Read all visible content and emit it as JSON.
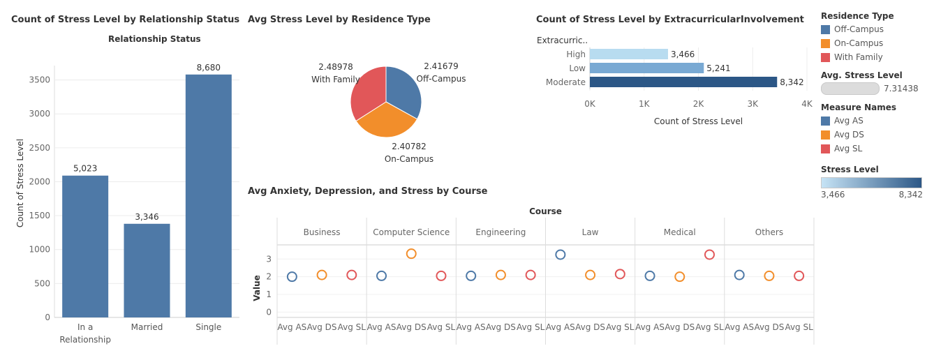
{
  "chart_data": [
    {
      "type": "bar",
      "title": "Count of Stress Level by Relationship Status",
      "header": "Relationship Status",
      "xlabel": "",
      "ylabel": "Count of Stress Level",
      "categories": [
        [
          "In a",
          "Relationship"
        ],
        [
          "Married"
        ],
        [
          "Single"
        ]
      ],
      "values": [
        2090,
        1380,
        3580
      ],
      "data_labels": [
        "5,023",
        "3,346",
        "8,680"
      ],
      "ylim": [
        0,
        3650
      ],
      "yticks": [
        "0",
        "500",
        "1000",
        "1500",
        "2000",
        "2500",
        "3000",
        "3500"
      ],
      "ytick_values": [
        0,
        500,
        1000,
        1500,
        2000,
        2500,
        3000,
        3500
      ],
      "color": "#4e79a7",
      "grid": true
    },
    {
      "type": "pie",
      "title": "Avg Stress Level by Residence Type",
      "slices": [
        {
          "name": "Off-Campus",
          "value": 2.41679,
          "label": "2.41679",
          "color": "#4e79a7"
        },
        {
          "name": "On-Campus",
          "value": 2.40782,
          "label": "2.40782",
          "color": "#f28e2b"
        },
        {
          "name": "With Family",
          "value": 2.48978,
          "label": "2.48978",
          "color": "#e15759"
        }
      ]
    },
    {
      "type": "bar",
      "orientation": "horizontal",
      "title": "Count of Stress Level by ExtracurricularInvolvement",
      "row_header": "Extracurric..",
      "xlabel": "Count of Stress Level",
      "categories": [
        "High",
        "Low",
        "Moderate"
      ],
      "values": [
        1440,
        2100,
        3450
      ],
      "data_labels": [
        "3,466",
        "5,241",
        "8,342"
      ],
      "colors": [
        "#b8dcf0",
        "#79a9d3",
        "#2c5786"
      ],
      "xlim": [
        0,
        4000
      ],
      "xticks": [
        "0K",
        "1K",
        "2K",
        "3K",
        "4K"
      ],
      "xtick_values": [
        0,
        1000,
        2000,
        3000,
        4000
      ],
      "grid": true
    },
    {
      "type": "scatter",
      "title": "Avg Anxiety, Depression, and Stress by Course",
      "header": "Course",
      "ylabel": "Value",
      "ylim": [
        -0.3,
        3.8
      ],
      "yticks": [
        "0",
        "1",
        "2",
        "3"
      ],
      "ytick_values": [
        0,
        1,
        2,
        3
      ],
      "measures": [
        "Avg AS",
        "Avg DS",
        "Avg SL"
      ],
      "measure_colors": [
        "#4e79a7",
        "#f28e2b",
        "#e15759"
      ],
      "courses": [
        {
          "name": "Business",
          "values": [
            2.0,
            2.1,
            2.1
          ]
        },
        {
          "name": "Computer Science",
          "values": [
            2.05,
            3.3,
            2.05
          ]
        },
        {
          "name": "Engineering",
          "values": [
            2.05,
            2.1,
            2.1
          ]
        },
        {
          "name": "Law",
          "values": [
            3.25,
            2.1,
            2.15
          ]
        },
        {
          "name": "Medical",
          "values": [
            2.05,
            2.0,
            3.25
          ]
        },
        {
          "name": "Others",
          "values": [
            2.1,
            2.05,
            2.05
          ]
        }
      ]
    }
  ],
  "legends": {
    "residence": {
      "title": "Residence Type",
      "items": [
        {
          "label": "Off-Campus",
          "color": "#4e79a7"
        },
        {
          "label": "On-Campus",
          "color": "#f28e2b"
        },
        {
          "label": "With Family",
          "color": "#e15759"
        }
      ]
    },
    "avg_stress": {
      "title": "Avg. Stress Level",
      "value": "7.31438"
    },
    "measures": {
      "title": "Measure Names",
      "items": [
        {
          "label": "Avg AS",
          "color": "#4e79a7"
        },
        {
          "label": "Avg DS",
          "color": "#f28e2b"
        },
        {
          "label": "Avg SL",
          "color": "#e15759"
        }
      ]
    },
    "stress_level": {
      "title": "Stress Level",
      "min": "3,466",
      "max": "8,342",
      "color_low": "#c6e3f5",
      "color_high": "#2c5786"
    }
  }
}
